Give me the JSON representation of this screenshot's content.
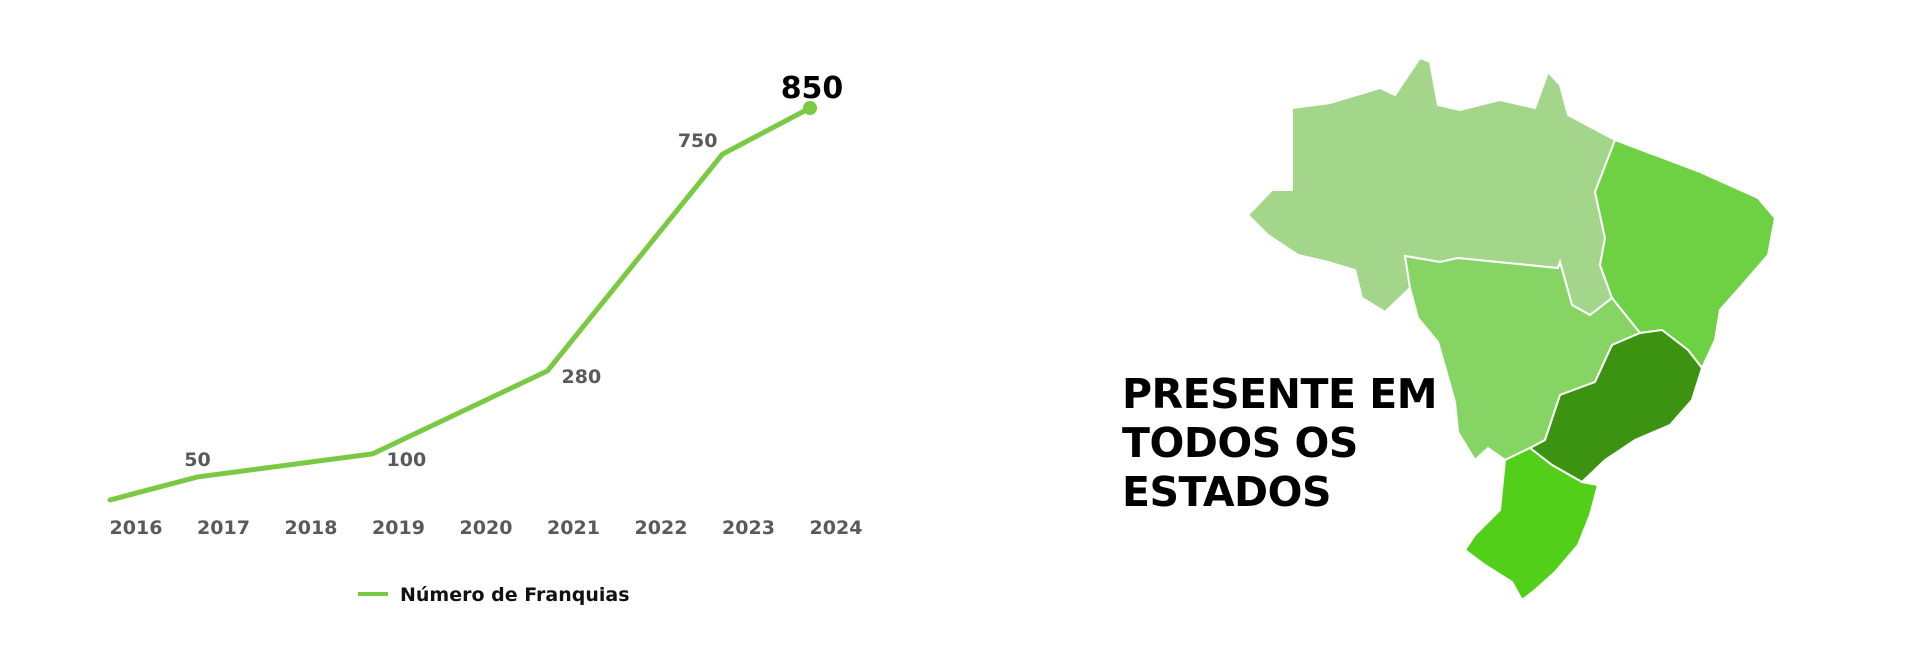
{
  "chart_data": {
    "type": "line",
    "categories": [
      "2016",
      "2017",
      "2018",
      "2019",
      "2020",
      "2021",
      "2022",
      "2023",
      "2024"
    ],
    "series": [
      {
        "name": "Número de Franquias",
        "points": [
          {
            "x": "2016",
            "y": 0
          },
          {
            "x": "2017",
            "y": 50
          },
          {
            "x": "2019",
            "y": 100
          },
          {
            "x": "2021",
            "y": 280
          },
          {
            "x": "2023",
            "y": 750
          },
          {
            "x": "2024",
            "y": 850
          }
        ],
        "labels": [
          {
            "x": "2017",
            "text": "50"
          },
          {
            "x": "2019",
            "text": "100"
          },
          {
            "x": "2021",
            "text": "280"
          },
          {
            "x": "2023",
            "text": "750"
          },
          {
            "x": "2024",
            "text": "850"
          }
        ]
      }
    ],
    "ylim": [
      0,
      850
    ],
    "grid": false,
    "legend_position": "bottom",
    "colors": {
      "line": "#7ac943"
    }
  },
  "headline": {
    "lines": [
      "PRESENTE EM",
      "TODOS OS",
      "ESTADOS"
    ]
  },
  "map": {
    "regions": [
      {
        "name": "norte",
        "color": "#a3d68a"
      },
      {
        "name": "nordeste",
        "color": "#6ed043"
      },
      {
        "name": "centro-oeste",
        "color": "#86d564"
      },
      {
        "name": "sudeste",
        "color": "#3c9312"
      },
      {
        "name": "sul",
        "color": "#52cf18"
      }
    ]
  }
}
